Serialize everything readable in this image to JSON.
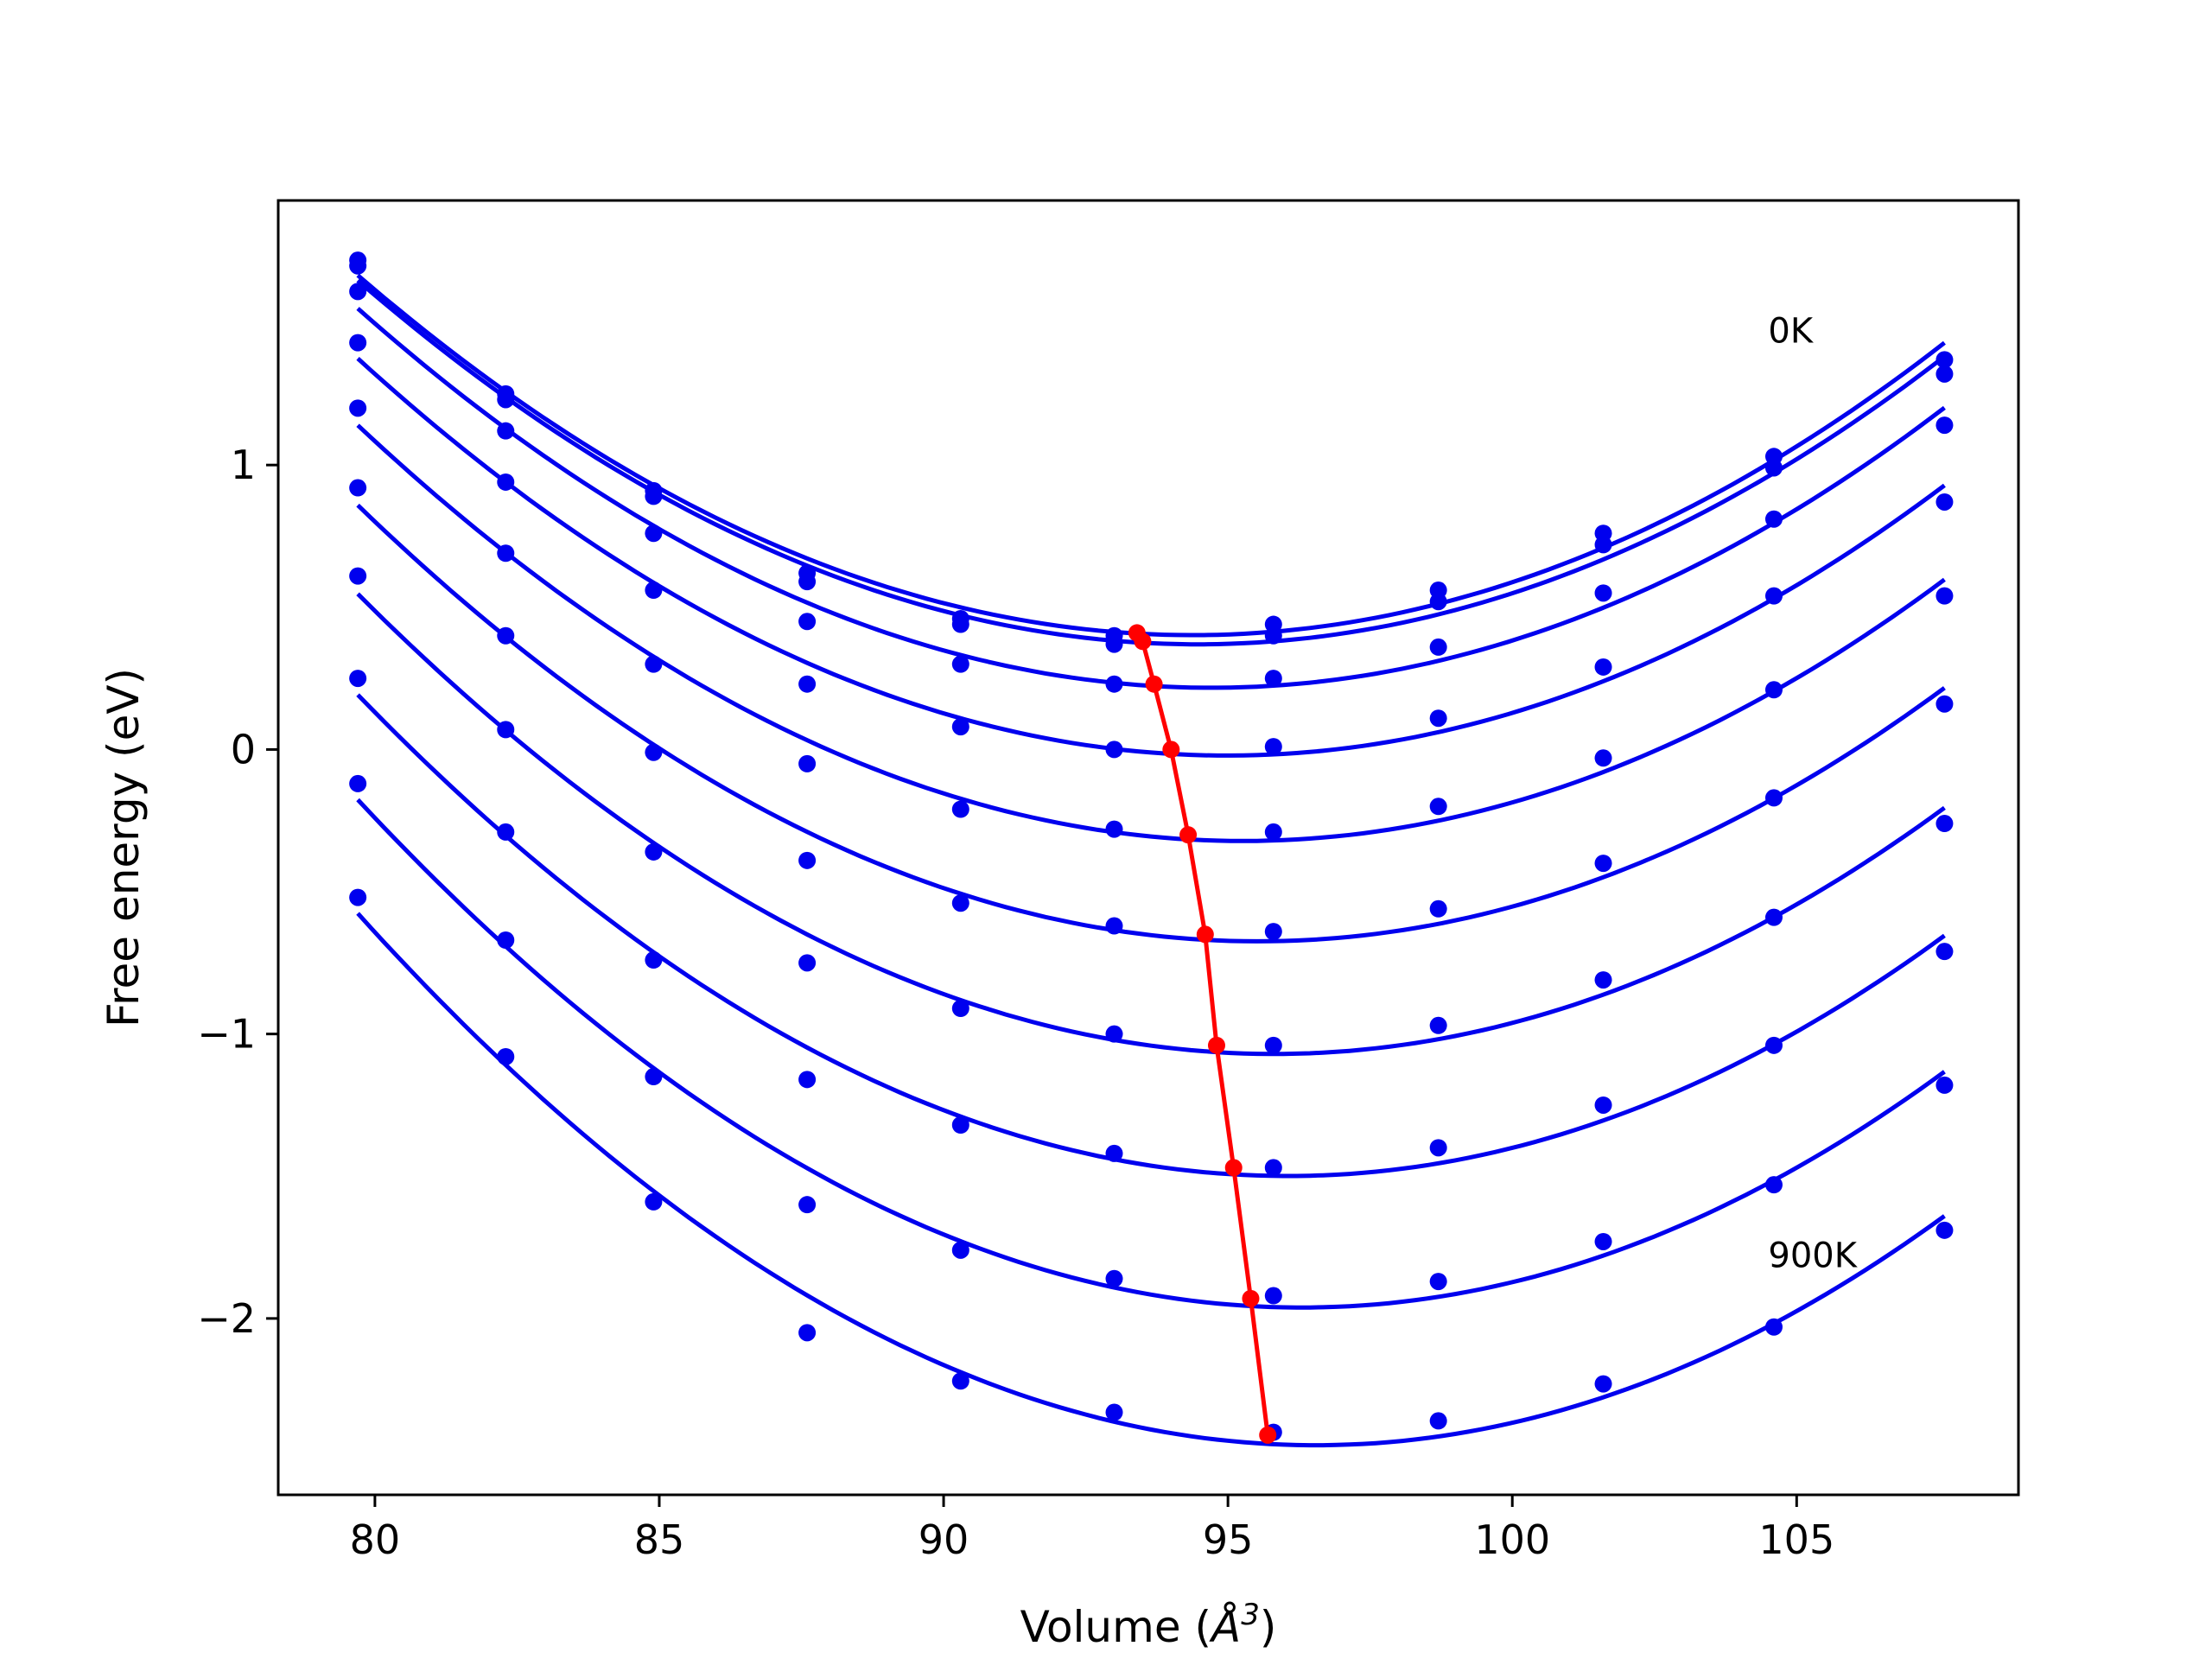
{
  "chart_data": {
    "type": "line",
    "xlabel": "Volume (",
    "xlabel_unit": "Å",
    "xlabel_exp": "3",
    "xlabel_close": ")",
    "ylabel": "Free energy (eV)",
    "xlim": [
      78.3,
      108.9
    ],
    "ylim": [
      -2.62,
      1.93
    ],
    "xticks": [
      80,
      85,
      90,
      95,
      100,
      105
    ],
    "xtick_labels": [
      "80",
      "85",
      "90",
      "95",
      "100",
      "105"
    ],
    "yticks": [
      -2,
      -1,
      0,
      1
    ],
    "ytick_labels": [
      "−2",
      "−1",
      "0",
      "1"
    ],
    "curve_color": "#0000ee",
    "min_color": "#ff0000",
    "annotations": [
      {
        "text": "0K",
        "x": 104.5,
        "y": 1.43
      },
      {
        "text": "900K",
        "x": 104.5,
        "y": -1.82
      }
    ],
    "x": [
      79.7,
      82.3,
      84.9,
      87.6,
      90.3,
      93.0,
      95.8,
      98.7,
      101.6,
      104.6,
      107.6
    ],
    "series": [
      {
        "values": [
          1.72,
          1.25,
          0.91,
          0.62,
          0.46,
          0.4,
          0.44,
          0.56,
          0.76,
          1.03,
          1.37
        ],
        "min": [
          93.4,
          0.41
        ]
      },
      {
        "values": [
          1.7,
          1.23,
          0.89,
          0.59,
          0.44,
          0.37,
          0.4,
          0.52,
          0.72,
          0.99,
          1.32
        ],
        "min": [
          93.5,
          0.38
        ]
      },
      {
        "values": [
          1.61,
          1.12,
          0.76,
          0.45,
          0.3,
          0.23,
          0.25,
          0.36,
          0.55,
          0.81,
          1.14
        ],
        "min": [
          93.7,
          0.23
        ]
      },
      {
        "values": [
          1.43,
          0.94,
          0.56,
          0.23,
          0.08,
          0.0,
          0.01,
          0.11,
          0.29,
          0.54,
          0.87
        ],
        "min": [
          94.0,
          0.0
        ]
      },
      {
        "values": [
          1.2,
          0.69,
          0.3,
          -0.05,
          -0.21,
          -0.28,
          -0.29,
          -0.2,
          -0.03,
          0.21,
          0.54
        ],
        "min": [
          94.3,
          -0.3
        ]
      },
      {
        "values": [
          0.92,
          0.4,
          -0.01,
          -0.39,
          -0.54,
          -0.62,
          -0.64,
          -0.56,
          -0.4,
          -0.17,
          0.16
        ],
        "min": [
          94.6,
          -0.65
        ]
      },
      {
        "values": [
          0.61,
          0.07,
          -0.36,
          -0.75,
          -0.91,
          -1.0,
          -1.04,
          -0.97,
          -0.81,
          -0.59,
          -0.26
        ],
        "min": [
          94.8,
          -1.04
        ]
      },
      {
        "values": [
          0.25,
          -0.29,
          -0.74,
          -1.16,
          -1.32,
          -1.42,
          -1.47,
          -1.4,
          -1.25,
          -1.04,
          -0.71
        ],
        "min": [
          95.1,
          -1.47
        ]
      },
      {
        "values": [
          -0.12,
          -0.67,
          -1.15,
          -1.6,
          -1.76,
          -1.86,
          -1.92,
          -1.87,
          -1.73,
          -1.53,
          -1.18
        ],
        "min": [
          95.4,
          -1.93
        ]
      },
      {
        "values": [
          -0.52,
          -1.08,
          -1.59,
          -2.05,
          -2.22,
          -2.33,
          -2.4,
          -2.36,
          -2.23,
          -2.03,
          -1.69
        ],
        "min": [
          95.7,
          -2.41
        ]
      }
    ]
  }
}
